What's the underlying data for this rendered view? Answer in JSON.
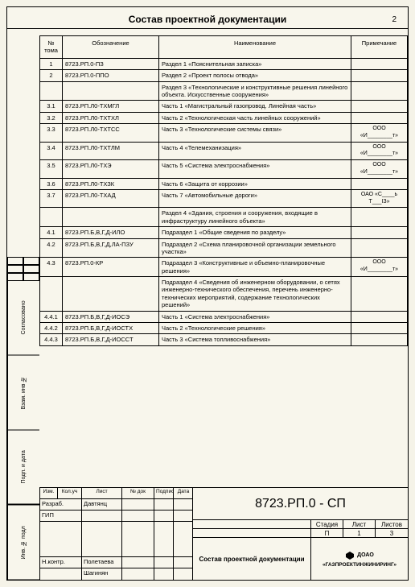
{
  "page_number": "2",
  "title": "Состав проектной документации",
  "columns": {
    "num": "№ тома",
    "designation": "Обозначение",
    "name": "Наименование",
    "note": "Примечание"
  },
  "rows": [
    {
      "num": "1",
      "des": "8723.РП.0-ПЗ",
      "name": "Раздел 1 «Пояснительная записка»",
      "note": ""
    },
    {
      "num": "2",
      "des": "8723.РП.0-ППО",
      "name": "Раздел 2 «Проект полосы отвода»",
      "note": ""
    },
    {
      "num": "",
      "des": "",
      "name": "Раздел 3 «Технологические и конструктивные решения линейного объекта. Искусственные сооружения»",
      "note": ""
    },
    {
      "num": "3.1",
      "des": "8723.РП.Л0-ТХМГЛ",
      "name": "Часть 1 «Магистральный газопровод. Линейная часть»",
      "note": ""
    },
    {
      "num": "3.2",
      "des": "8723.РП.Л0-ТХТХЛ",
      "name": "Часть 2 «Технологическая часть линейных сооружений»",
      "note": ""
    },
    {
      "num": "3.3",
      "des": "8723.РП.Л0-ТХТСС",
      "name": "Часть 3 «Технологические системы связи»",
      "note": "ООО «И________т»"
    },
    {
      "num": "3.4",
      "des": "8723.РП.Л0-ТХТЛМ",
      "name": "Часть 4 «Телемеханизация»",
      "note": "ООО «И________т»"
    },
    {
      "num": "3.5",
      "des": "8723.РП.Л0-ТХЭ",
      "name": "Часть 5 «Система электроснабжения»",
      "note": "ООО «И________т»"
    },
    {
      "num": "3.6",
      "des": "8723.РП.Л0-ТХЗК",
      "name": "Часть 6 «Защита от коррозии»",
      "note": ""
    },
    {
      "num": "3.7",
      "des": "8723.РП.Л0-ТХАД",
      "name": "Часть 7 «Автомобильные дороги»",
      "note": "ОАО «С____ь Т___ІЗ»"
    },
    {
      "num": "",
      "des": "",
      "name": "Раздел 4 «Здания, строения и сооружения, входящие в инфраструктуру линейного объекта»",
      "note": ""
    },
    {
      "num": "4.1",
      "des": "8723.РП.Б,В,Г,Д-ИЛО",
      "name": "Подраздел 1 «Общие сведения по разделу»",
      "note": ""
    },
    {
      "num": "4.2",
      "des": "8723.РП.Б,В,Г,Д,ЛА-ПЗУ",
      "name": "Подраздел 2 «Схема планировочной организации земельного участка»",
      "note": ""
    },
    {
      "num": "4.3",
      "des": "8723.РП.0-КР",
      "name": "Подраздел 3 «Конструктивные и объемно-планировочные решения»",
      "note": "ООО «И________т»"
    },
    {
      "num": "",
      "des": "",
      "name": "Подраздел 4 «Сведения об инженерном оборудовании, о сетях инженерно-технического обеспечения, перечень инженерно-технических мероприятий, содержание технологических решений»",
      "note": ""
    },
    {
      "num": "4.4.1",
      "des": "8723.РП.Б,В,Г,Д-ИОСЭ",
      "name": "Часть 1 «Система электроснабжения»",
      "note": ""
    },
    {
      "num": "4.4.2",
      "des": "8723.РП.Б,В,Г,Д-ИОСТХ",
      "name": "Часть 2 «Технологические решения»",
      "note": ""
    },
    {
      "num": "4.4.3",
      "des": "8723.РП.Б,В,Г,Д-ИОССТ",
      "name": "Часть 3 «Система топливоснабжения»",
      "note": ""
    }
  ],
  "side_tabs": [
    "Согласовано",
    "Взам. инв №",
    "Подп. и дата",
    "Инв. № подл"
  ],
  "stamp": {
    "hdr": [
      "Изм.",
      "Кол.уч",
      "Лист",
      "№ док",
      "Подпись",
      "Дата"
    ],
    "rows": [
      {
        "role": "Разраб.",
        "name": "Давтянц"
      },
      {
        "role": "ГИП",
        "name": ""
      },
      {
        "role": "Н.контр.",
        "name": "Полетаева"
      },
      {
        "role": "",
        "name": "Шагинян"
      }
    ],
    "doc_code": "8723.РП.0 - СП",
    "slh_labels": {
      "stadiya": "Стадия",
      "list": "Лист",
      "listov": "Листов"
    },
    "slh_vals": {
      "stadiya": "П",
      "list": "1",
      "listov": "3"
    },
    "proj_title": "Состав проектной документации",
    "company_prefix": "ДОАО",
    "company_name": "«ГАЗПРОЕКТИНЖИНИРИНГ»"
  }
}
